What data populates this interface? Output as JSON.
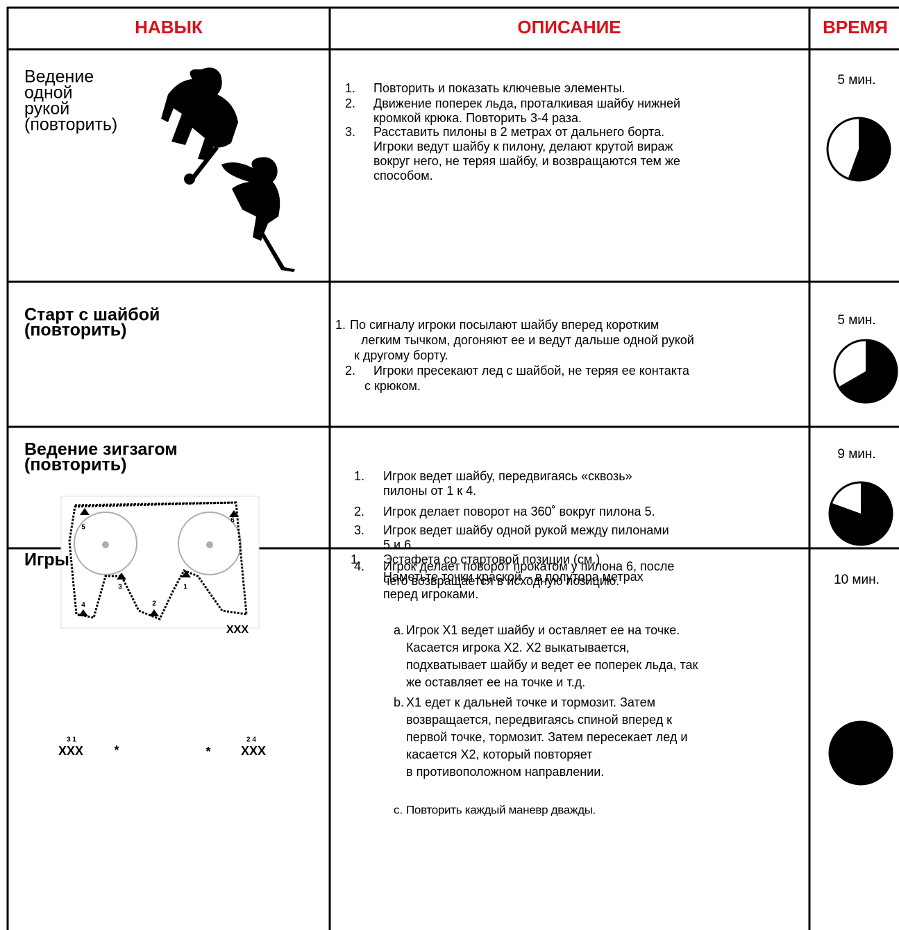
{
  "header": {
    "skill": "НАВЫК",
    "description": "ОПИСАНИЕ",
    "time": "ВРЕМЯ"
  },
  "rows": [
    {
      "skill_lines": [
        "Ведение",
        "одной",
        "рукой",
        "(повторить)"
      ],
      "items": [
        {
          "marker": "1.",
          "lines": [
            "Повторить и показать ключевые элементы."
          ]
        },
        {
          "marker": "2.",
          "lines": [
            "Движение поперек льда, проталкивая  шайбу нижней",
            "кромкой крюка. Повторить 3-4 раза."
          ]
        },
        {
          "marker": "3.",
          "lines": [
            "Расставить пилоны в 2 метрах от дальнего борта.",
            "Игроки ведут шайбу к пилону, делают крутой вираж",
            "вокруг него, не теряя шайбу, и возвращаются тем же",
            "способом."
          ]
        }
      ],
      "time": "5 мин."
    },
    {
      "skill_lines": [
        "Старт с шайбой",
        "(повторить)"
      ],
      "items": [
        {
          "marker": "1.",
          "lines": [
            "По сигналу игроки посылают шайбу вперед коротким",
            "легким тычком, догоняют ее и ведут дальше одной рукой",
            "к другому борту."
          ]
        },
        {
          "marker": "2.",
          "lines": [
            "Игроки пресекают лед с шайбой, не теряя ее контакта",
            "с крюком."
          ]
        }
      ],
      "time": "5 мин."
    },
    {
      "skill_lines": [
        "Ведение зигзагом",
        "(повторить)"
      ],
      "diagram_labels": [
        "5",
        "6",
        "4",
        "3",
        "2",
        "1",
        "XXX"
      ],
      "items": [
        {
          "marker": "1.",
          "lines": [
            "Игрок ведет шайбу, передвигаясь «сквозь»",
            "пилоны от 1 к 4."
          ]
        },
        {
          "marker": "2.",
          "lines": [
            "Игрок делает поворот на 360˚ вокруг пилона 5."
          ]
        },
        {
          "marker": "3.",
          "lines": [
            "Игрок ведет шайбу одной рукой между пилонами",
            "5 и 6."
          ]
        },
        {
          "marker": "4.",
          "lines": [
            "Игрок делает поворот прокатом у пилона 6, после",
            "чего возвращается в исходную позицию."
          ]
        }
      ],
      "time": "9 мин."
    },
    {
      "skill_lines": [
        "Игры"
      ],
      "diagram_labels": [
        "XXX",
        "3 1",
        "*",
        "*",
        "XXX",
        "2 4"
      ],
      "items": [
        {
          "marker": "1.",
          "lines": [
            "Эстафета со стартовой позиции (см.)",
            "Наметьте точки краской – в полутора метрах",
            "перед игроками."
          ]
        },
        {
          "marker": "a.",
          "lines": [
            "Игрок X1 ведет шайбу и оставляет ее на точке.",
            "Касается игрока X2. X2 выкатывается,",
            "подхватывает шайбу и ведет ее поперек льда, так",
            "же оставляет ее на точке и т.д."
          ]
        },
        {
          "marker": "b.",
          "lines": [
            "X1 едет к дальней точке и тормозит. Затем",
            "возвращается, передвигаясь спиной вперед к",
            "первой точке, тормозит. Затем пересекает лед и",
            "касается X2, который повторяет",
            "в противоположном направлении."
          ]
        },
        {
          "marker": "c.",
          "lines": [
            "Повторить каждый маневр дважды."
          ]
        }
      ],
      "time": "10 мин."
    }
  ]
}
